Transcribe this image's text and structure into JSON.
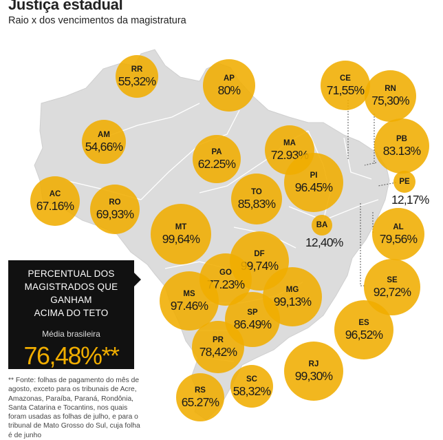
{
  "header": {
    "title": "Justiça estadual",
    "subtitle": "Raio x dos vencimentos da magistratura"
  },
  "colors": {
    "bubble": "#f0ad00",
    "map_land": "#dcdcdc",
    "map_border": "#ffffff",
    "infobox_bg": "#111111",
    "accent": "#f0ad00"
  },
  "states": [
    {
      "uf": "RR",
      "value": "55,32%"
    },
    {
      "uf": "AP",
      "value": "80%"
    },
    {
      "uf": "CE",
      "value": "71,55%"
    },
    {
      "uf": "RN",
      "value": "75,30%"
    },
    {
      "uf": "AM",
      "value": "54,66%"
    },
    {
      "uf": "PA",
      "value": "62.25%"
    },
    {
      "uf": "MA",
      "value": "72.93%"
    },
    {
      "uf": "PB",
      "value": "83.13%"
    },
    {
      "uf": "PI",
      "value": "96.45%"
    },
    {
      "uf": "PE",
      "value": "12,17%"
    },
    {
      "uf": "AC",
      "value": "67.16%"
    },
    {
      "uf": "RO",
      "value": "69,93%"
    },
    {
      "uf": "TO",
      "value": "85,83%"
    },
    {
      "uf": "BA",
      "value": "12,40%"
    },
    {
      "uf": "MT",
      "value": "99,64%"
    },
    {
      "uf": "AL",
      "value": "79,56%"
    },
    {
      "uf": "DF",
      "value": "99,74%"
    },
    {
      "uf": "GO",
      "value": "77.23%"
    },
    {
      "uf": "MS",
      "value": "97.46%"
    },
    {
      "uf": "MG",
      "value": "99,13%"
    },
    {
      "uf": "SE",
      "value": "92,72%"
    },
    {
      "uf": "SP",
      "value": "86.49%"
    },
    {
      "uf": "ES",
      "value": "96,52%"
    },
    {
      "uf": "PR",
      "value": "78,42%"
    },
    {
      "uf": "RJ",
      "value": "99,30%"
    },
    {
      "uf": "RS",
      "value": "65.27%"
    },
    {
      "uf": "SC",
      "value": "58,32%"
    }
  ],
  "infobox": {
    "heading_line1": "PERCENTUAL DOS",
    "heading_line2": "MAGISTRADOS  QUE GANHAM",
    "heading_line3": "ACIMA DO TETO",
    "label": "Média brasileira",
    "average": "76,48%**"
  },
  "footnote": "** Fonte: folhas de pagamento do mês de agosto, exceto para os tribunais de Acre, Amazonas, Paraíba, Paraná, Rondônia, Santa Catarina e Tocantins, nos quais foram usadas as folhas de julho, e para o tribunal de Mato Grosso do Sul, cuja folha é de junho"
}
